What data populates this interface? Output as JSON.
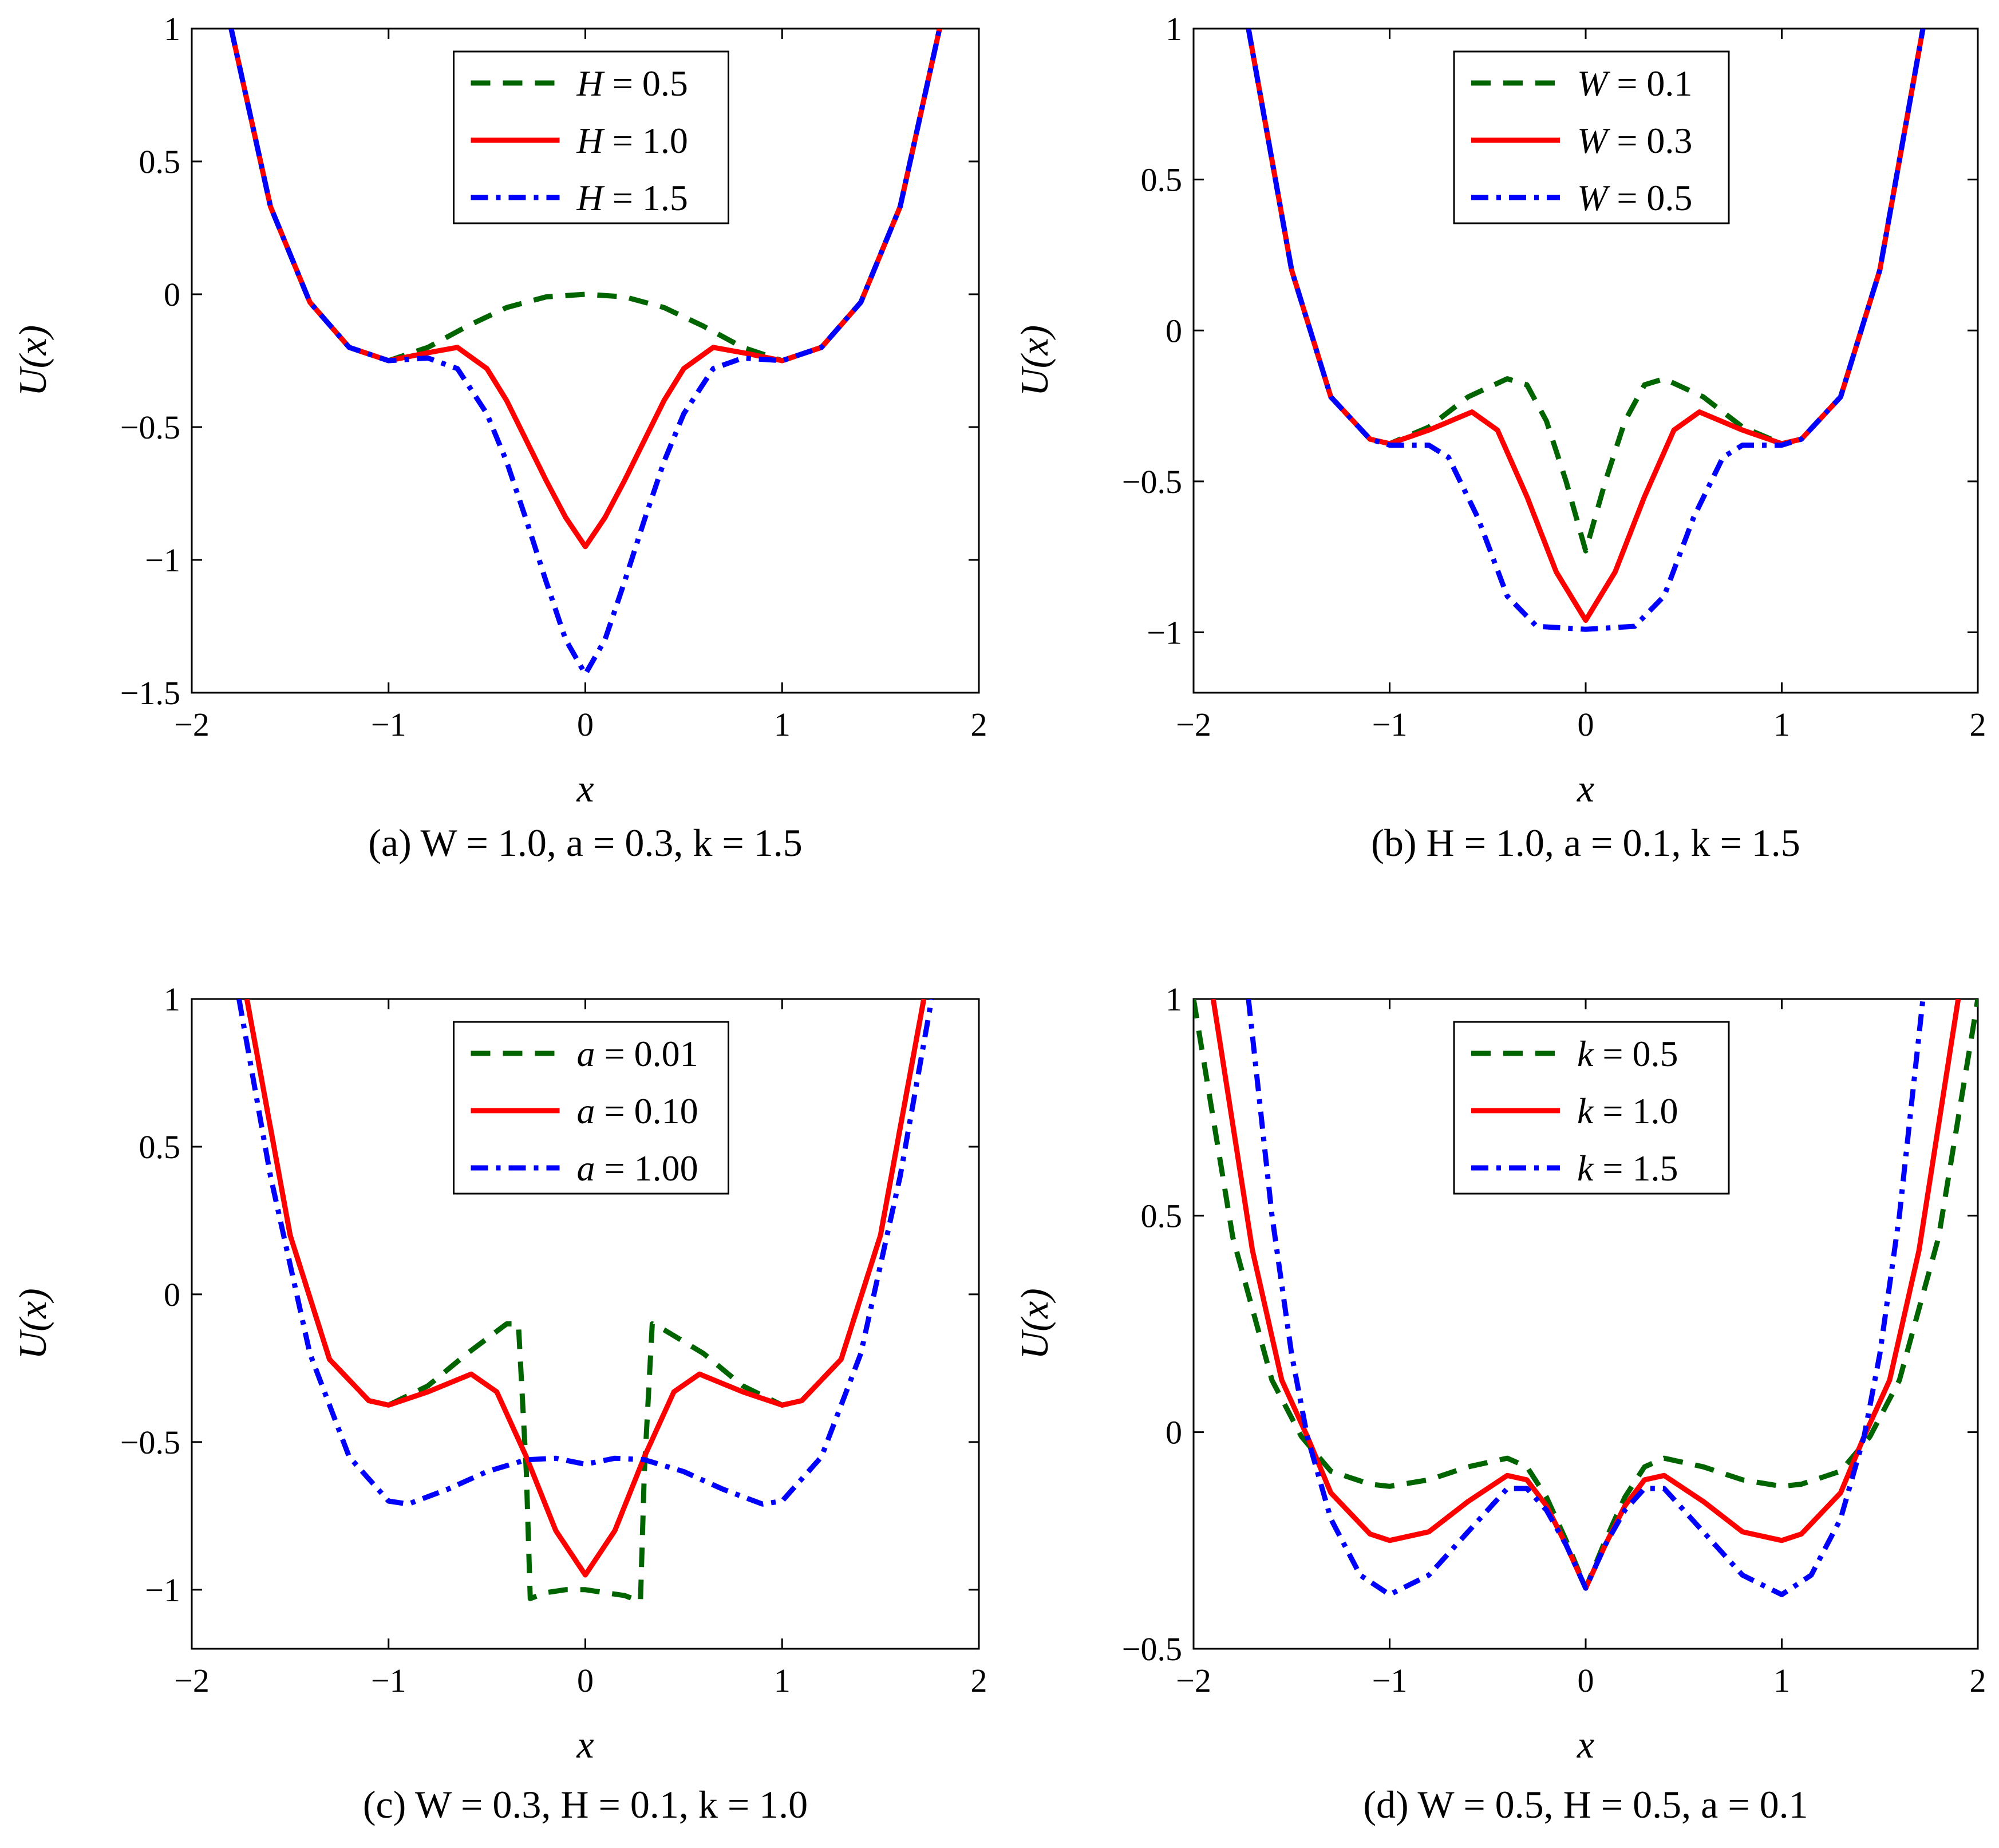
{
  "colors": {
    "green": "#006400",
    "red": "#ff0000",
    "blue": "#0000ff",
    "axis": "#000000"
  },
  "chart_data": [
    {
      "id": "a",
      "type": "line",
      "caption": "(a) W = 1.0, a = 0.3, k = 1.5",
      "xlabel": "x",
      "ylabel": "U(x)",
      "xlim": [
        -2,
        2
      ],
      "ylim": [
        -1.5,
        1
      ],
      "xticks": [
        -2,
        -1,
        0,
        1,
        2
      ],
      "xtick_labels": [
        "−2",
        "−1",
        "0",
        "1",
        "2"
      ],
      "yticks": [
        -1.5,
        -1,
        -0.5,
        0,
        0.5,
        1
      ],
      "ytick_labels": [
        "−1.5",
        "−1",
        "−0.5",
        "0",
        "0.5",
        "1"
      ],
      "legend_position": "top-center",
      "series": [
        {
          "name": "H = 0.5",
          "label_var": "H",
          "label_val": " = 0.5",
          "style": "dashed",
          "color": "green",
          "x": [
            -1.8,
            -1.6,
            -1.4,
            -1.2,
            -1.0,
            -0.8,
            -0.6,
            -0.4,
            -0.2,
            0,
            0.2,
            0.4,
            0.6,
            0.8,
            1.0,
            1.2,
            1.4,
            1.6,
            1.8
          ],
          "y": [
            1.0,
            0.33,
            -0.03,
            -0.2,
            -0.25,
            -0.2,
            -0.12,
            -0.05,
            -0.01,
            0,
            -0.01,
            -0.05,
            -0.12,
            -0.2,
            -0.25,
            -0.2,
            -0.03,
            0.33,
            1.0
          ]
        },
        {
          "name": "H = 1.0",
          "label_var": "H",
          "label_val": " = 1.0",
          "style": "solid",
          "color": "red",
          "x": [
            -1.8,
            -1.6,
            -1.4,
            -1.2,
            -1.0,
            -0.8,
            -0.65,
            -0.5,
            -0.4,
            -0.3,
            -0.2,
            -0.1,
            0,
            0.1,
            0.2,
            0.3,
            0.4,
            0.5,
            0.65,
            0.8,
            1.0,
            1.2,
            1.4,
            1.6,
            1.8
          ],
          "y": [
            1.0,
            0.33,
            -0.03,
            -0.2,
            -0.25,
            -0.22,
            -0.2,
            -0.28,
            -0.4,
            -0.55,
            -0.7,
            -0.84,
            -0.95,
            -0.84,
            -0.7,
            -0.55,
            -0.4,
            -0.28,
            -0.2,
            -0.22,
            -0.25,
            -0.2,
            -0.03,
            0.33,
            1.0
          ]
        },
        {
          "name": "H = 1.5",
          "label_var": "H",
          "label_val": " = 1.5",
          "style": "dashdot",
          "color": "blue",
          "x": [
            -1.8,
            -1.6,
            -1.4,
            -1.2,
            -1.0,
            -0.8,
            -0.65,
            -0.5,
            -0.4,
            -0.3,
            -0.2,
            -0.1,
            0,
            0.1,
            0.2,
            0.3,
            0.4,
            0.5,
            0.65,
            0.8,
            1.0,
            1.2,
            1.4,
            1.6,
            1.8
          ],
          "y": [
            1.0,
            0.33,
            -0.03,
            -0.2,
            -0.25,
            -0.24,
            -0.28,
            -0.45,
            -0.63,
            -0.85,
            -1.08,
            -1.3,
            -1.43,
            -1.3,
            -1.08,
            -0.85,
            -0.63,
            -0.45,
            -0.28,
            -0.24,
            -0.25,
            -0.2,
            -0.03,
            0.33,
            1.0
          ]
        }
      ]
    },
    {
      "id": "b",
      "type": "line",
      "caption": "(b) H = 1.0, a = 0.1, k = 1.5",
      "xlabel": "x",
      "ylabel": "U(x)",
      "xlim": [
        -2,
        2
      ],
      "ylim": [
        -1.2,
        1
      ],
      "xticks": [
        -2,
        -1,
        0,
        1,
        2
      ],
      "xtick_labels": [
        "−2",
        "−1",
        "0",
        "1",
        "2"
      ],
      "yticks": [
        -1,
        -0.5,
        0,
        0.5,
        1
      ],
      "ytick_labels": [
        "−1",
        "−0.5",
        "0",
        "0.5",
        "1"
      ],
      "legend_position": "top-center",
      "series": [
        {
          "name": "W = 0.1",
          "label_var": "W",
          "label_val": " = 0.1",
          "style": "dashed",
          "color": "green",
          "x": [
            -1.72,
            -1.5,
            -1.3,
            -1.1,
            -1.0,
            -0.8,
            -0.6,
            -0.4,
            -0.3,
            -0.2,
            -0.1,
            0,
            0.1,
            0.2,
            0.3,
            0.4,
            0.6,
            0.8,
            1.0,
            1.1,
            1.3,
            1.5,
            1.72
          ],
          "y": [
            1.0,
            0.2,
            -0.22,
            -0.36,
            -0.375,
            -0.32,
            -0.22,
            -0.16,
            -0.18,
            -0.3,
            -0.5,
            -0.73,
            -0.5,
            -0.3,
            -0.18,
            -0.16,
            -0.22,
            -0.32,
            -0.375,
            -0.36,
            -0.22,
            0.2,
            1.0
          ]
        },
        {
          "name": "W = 0.3",
          "label_var": "W",
          "label_val": " = 0.3",
          "style": "solid",
          "color": "red",
          "x": [
            -1.72,
            -1.5,
            -1.3,
            -1.1,
            -1.0,
            -0.8,
            -0.58,
            -0.45,
            -0.3,
            -0.15,
            0,
            0.15,
            0.3,
            0.45,
            0.58,
            0.8,
            1.0,
            1.1,
            1.3,
            1.5,
            1.72
          ],
          "y": [
            1.0,
            0.2,
            -0.22,
            -0.36,
            -0.375,
            -0.33,
            -0.27,
            -0.33,
            -0.55,
            -0.8,
            -0.96,
            -0.8,
            -0.55,
            -0.33,
            -0.27,
            -0.33,
            -0.375,
            -0.36,
            -0.22,
            0.2,
            1.0
          ]
        },
        {
          "name": "W = 0.5",
          "label_var": "W",
          "label_val": " = 0.5",
          "style": "dashdot",
          "color": "blue",
          "x": [
            -1.72,
            -1.5,
            -1.3,
            -1.1,
            -1.0,
            -0.8,
            -0.7,
            -0.55,
            -0.4,
            -0.25,
            0,
            0.25,
            0.4,
            0.55,
            0.7,
            0.8,
            1.0,
            1.1,
            1.3,
            1.5,
            1.72
          ],
          "y": [
            1.0,
            0.2,
            -0.22,
            -0.36,
            -0.38,
            -0.38,
            -0.42,
            -0.62,
            -0.88,
            -0.98,
            -0.99,
            -0.98,
            -0.88,
            -0.62,
            -0.42,
            -0.38,
            -0.38,
            -0.36,
            -0.22,
            0.2,
            1.0
          ]
        }
      ]
    },
    {
      "id": "c",
      "type": "line",
      "caption": "(c) W = 0.3, H = 0.1, k = 1.0",
      "xlabel": "x",
      "ylabel": "U(x)",
      "xlim": [
        -2,
        2
      ],
      "ylim": [
        -1.2,
        1
      ],
      "xticks": [
        -2,
        -1,
        0,
        1,
        2
      ],
      "xtick_labels": [
        "−2",
        "−1",
        "0",
        "1",
        "2"
      ],
      "yticks": [
        -1,
        -0.5,
        0,
        0.5,
        1
      ],
      "ytick_labels": [
        "−1",
        "−0.5",
        "0",
        "0.5",
        "1"
      ],
      "legend_position": "top-center",
      "series": [
        {
          "name": "a = 0.01",
          "label_var": "a",
          "label_val": " = 0.01",
          "style": "dashed",
          "color": "green",
          "x": [
            -1.72,
            -1.5,
            -1.3,
            -1.1,
            -1.0,
            -0.8,
            -0.6,
            -0.4,
            -0.34,
            -0.3,
            -0.28,
            -0.2,
            -0.1,
            0,
            0.1,
            0.2,
            0.28,
            0.3,
            0.34,
            0.4,
            0.6,
            0.8,
            1.0,
            1.1,
            1.3,
            1.5,
            1.72
          ],
          "y": [
            1.0,
            0.2,
            -0.22,
            -0.36,
            -0.375,
            -0.31,
            -0.2,
            -0.1,
            -0.1,
            -0.6,
            -1.03,
            -1.01,
            -1.0,
            -1.0,
            -1.01,
            -1.02,
            -1.04,
            -0.6,
            -0.1,
            -0.12,
            -0.2,
            -0.31,
            -0.375,
            -0.36,
            -0.22,
            0.2,
            1.0
          ]
        },
        {
          "name": "a = 0.10",
          "label_var": "a",
          "label_val": " = 0.10",
          "style": "solid",
          "color": "red",
          "x": [
            -1.72,
            -1.5,
            -1.3,
            -1.1,
            -1.0,
            -0.8,
            -0.58,
            -0.45,
            -0.3,
            -0.15,
            0,
            0.15,
            0.3,
            0.45,
            0.58,
            0.8,
            1.0,
            1.1,
            1.3,
            1.5,
            1.72
          ],
          "y": [
            1.0,
            0.2,
            -0.22,
            -0.36,
            -0.375,
            -0.33,
            -0.27,
            -0.33,
            -0.55,
            -0.8,
            -0.95,
            -0.8,
            -0.55,
            -0.33,
            -0.27,
            -0.33,
            -0.375,
            -0.36,
            -0.22,
            0.2,
            1.0
          ]
        },
        {
          "name": "a = 1.00",
          "label_var": "a",
          "label_val": " = 1.00",
          "style": "dashdot",
          "color": "blue",
          "x": [
            -1.76,
            -1.6,
            -1.4,
            -1.2,
            -1.0,
            -0.9,
            -0.7,
            -0.5,
            -0.3,
            -0.15,
            0,
            0.15,
            0.3,
            0.5,
            0.7,
            0.9,
            1.0,
            1.2,
            1.4,
            1.6,
            1.76
          ],
          "y": [
            1.0,
            0.4,
            -0.2,
            -0.55,
            -0.7,
            -0.71,
            -0.66,
            -0.6,
            -0.56,
            -0.555,
            -0.575,
            -0.555,
            -0.56,
            -0.6,
            -0.66,
            -0.71,
            -0.7,
            -0.55,
            -0.2,
            0.4,
            1.0
          ]
        }
      ]
    },
    {
      "id": "d",
      "type": "line",
      "caption": "(d) W = 0.5, H = 0.5, a = 0.1",
      "xlabel": "x",
      "ylabel": "U(x)",
      "xlim": [
        -2,
        2
      ],
      "ylim": [
        -0.5,
        1
      ],
      "xticks": [
        -2,
        -1,
        0,
        1,
        2
      ],
      "xtick_labels": [
        "−2",
        "−1",
        "0",
        "1",
        "2"
      ],
      "yticks": [
        -0.5,
        0,
        0.5,
        1
      ],
      "ytick_labels": [
        "−0.5",
        "0",
        "0.5",
        "1"
      ],
      "legend_position": "top-center",
      "series": [
        {
          "name": "k = 0.5",
          "label_var": "k",
          "label_val": " = 0.5",
          "style": "dashed",
          "color": "green",
          "x": [
            -2.0,
            -1.8,
            -1.6,
            -1.45,
            -1.3,
            -1.1,
            -1.0,
            -0.8,
            -0.6,
            -0.4,
            -0.3,
            -0.2,
            -0.1,
            0,
            0.1,
            0.2,
            0.3,
            0.4,
            0.6,
            0.8,
            1.0,
            1.1,
            1.3,
            1.45,
            1.6,
            1.8,
            2.0
          ],
          "y": [
            1.0,
            0.45,
            0.12,
            -0.01,
            -0.09,
            -0.12,
            -0.125,
            -0.11,
            -0.08,
            -0.06,
            -0.08,
            -0.15,
            -0.25,
            -0.36,
            -0.25,
            -0.15,
            -0.08,
            -0.06,
            -0.08,
            -0.11,
            -0.125,
            -0.12,
            -0.09,
            -0.01,
            0.12,
            0.45,
            1.0
          ]
        },
        {
          "name": "k = 1.0",
          "label_var": "k",
          "label_val": " = 1.0",
          "style": "solid",
          "color": "red",
          "x": [
            -1.9,
            -1.7,
            -1.55,
            -1.42,
            -1.3,
            -1.1,
            -1.0,
            -0.8,
            -0.6,
            -0.4,
            -0.3,
            -0.2,
            -0.1,
            0,
            0.1,
            0.2,
            0.3,
            0.4,
            0.6,
            0.8,
            1.0,
            1.1,
            1.3,
            1.42,
            1.55,
            1.7,
            1.9
          ],
          "y": [
            1.0,
            0.42,
            0.12,
            -0.01,
            -0.14,
            -0.235,
            -0.25,
            -0.23,
            -0.16,
            -0.1,
            -0.11,
            -0.17,
            -0.26,
            -0.36,
            -0.26,
            -0.17,
            -0.11,
            -0.1,
            -0.16,
            -0.23,
            -0.25,
            -0.235,
            -0.14,
            -0.01,
            0.12,
            0.42,
            1.0
          ]
        },
        {
          "name": "k = 1.5",
          "label_var": "k",
          "label_val": " = 1.5",
          "style": "dashdot",
          "color": "blue",
          "x": [
            -1.72,
            -1.6,
            -1.5,
            -1.42,
            -1.3,
            -1.15,
            -1.0,
            -0.8,
            -0.6,
            -0.4,
            -0.3,
            -0.2,
            -0.1,
            0,
            0.1,
            0.2,
            0.3,
            0.4,
            0.6,
            0.8,
            1.0,
            1.15,
            1.3,
            1.42,
            1.5,
            1.6,
            1.72
          ],
          "y": [
            1.0,
            0.5,
            0.18,
            -0.01,
            -0.2,
            -0.33,
            -0.375,
            -0.33,
            -0.23,
            -0.13,
            -0.13,
            -0.18,
            -0.26,
            -0.36,
            -0.26,
            -0.18,
            -0.13,
            -0.13,
            -0.23,
            -0.33,
            -0.375,
            -0.33,
            -0.2,
            -0.01,
            0.18,
            0.5,
            1.0
          ]
        }
      ]
    }
  ]
}
